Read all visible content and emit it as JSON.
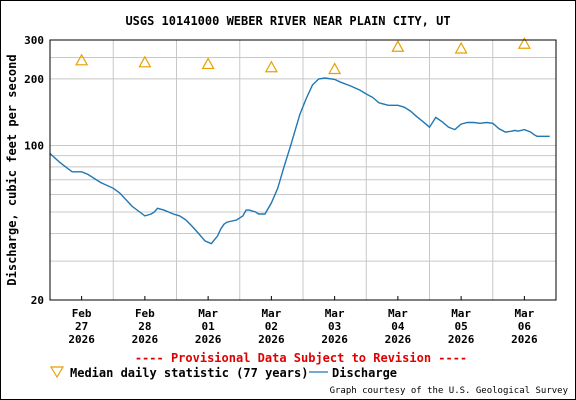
{
  "chart_data": {
    "type": "line",
    "title": "USGS 10141000 WEBER RIVER NEAR PLAIN CITY, UT",
    "ylabel": "Discharge, cubic feet per second",
    "yscale": "log",
    "ylim": [
      20,
      300
    ],
    "y_ticks": [
      {
        "value": 20,
        "label": "20"
      },
      {
        "value": 100,
        "label": "100"
      },
      {
        "value": 200,
        "label": "200"
      },
      {
        "value": 300,
        "label": "300"
      }
    ],
    "y_minor_gridlines": [
      30,
      40,
      50,
      60,
      70,
      80,
      90,
      250
    ],
    "x_ticks": [
      {
        "x": 0.5,
        "label": [
          "Feb",
          "27",
          "2026"
        ]
      },
      {
        "x": 1.5,
        "label": [
          "Feb",
          "28",
          "2026"
        ]
      },
      {
        "x": 2.5,
        "label": [
          "Mar",
          "01",
          "2026"
        ]
      },
      {
        "x": 3.5,
        "label": [
          "Mar",
          "02",
          "2026"
        ]
      },
      {
        "x": 4.5,
        "label": [
          "Mar",
          "03",
          "2026"
        ]
      },
      {
        "x": 5.5,
        "label": [
          "Mar",
          "04",
          "2026"
        ]
      },
      {
        "x": 6.5,
        "label": [
          "Mar",
          "05",
          "2026"
        ]
      },
      {
        "x": 7.5,
        "label": [
          "Mar",
          "06",
          "2026"
        ]
      }
    ],
    "day_boundaries": [
      1,
      2,
      3,
      4,
      5,
      6,
      7
    ],
    "xlim": [
      0,
      8
    ],
    "grid": true,
    "series": [
      {
        "name": "Median daily statistic (77 years)",
        "marker": "triangle",
        "color": "#e8a000",
        "x": [
          0.5,
          1.5,
          2.5,
          3.5,
          4.5,
          5.5,
          6.5,
          7.5
        ],
        "y": [
          244,
          239,
          235,
          227,
          223,
          281,
          276,
          290
        ]
      },
      {
        "name": "Discharge",
        "marker": "line",
        "color": "#1f77b4",
        "x": [
          0.0,
          0.15,
          0.35,
          0.5,
          0.6,
          0.8,
          1.0,
          1.1,
          1.3,
          1.5,
          1.6,
          1.65,
          1.7,
          1.8,
          1.95,
          2.05,
          2.15,
          2.25,
          2.35,
          2.45,
          2.55,
          2.65,
          2.7,
          2.75,
          2.8,
          2.95,
          3.05,
          3.1,
          3.15,
          3.25,
          3.3,
          3.4,
          3.5,
          3.6,
          3.7,
          3.8,
          3.95,
          4.05,
          4.15,
          4.25,
          4.35,
          4.5,
          4.6,
          4.75,
          4.9,
          5.0,
          5.1,
          5.2,
          5.35,
          5.5,
          5.6,
          5.7,
          5.8,
          5.9,
          6.0,
          6.1,
          6.2,
          6.3,
          6.4,
          6.5,
          6.6,
          6.7,
          6.8,
          6.9,
          7.0,
          7.1,
          7.2,
          7.3,
          7.35,
          7.4,
          7.5,
          7.6,
          7.65,
          7.7,
          7.8,
          7.9
        ],
        "y": [
          92,
          84,
          76,
          76,
          74,
          68,
          64,
          61,
          53,
          48,
          49,
          50,
          52,
          51,
          49,
          48,
          46,
          43,
          40,
          37,
          36,
          39,
          42,
          44,
          45,
          46,
          48,
          51,
          51,
          50,
          49,
          49,
          55,
          64,
          80,
          99,
          138,
          163,
          188,
          200,
          202,
          199,
          193,
          186,
          178,
          171,
          165,
          156,
          152,
          152,
          149,
          143,
          135,
          128,
          121,
          134,
          128,
          121,
          118,
          125,
          127,
          127,
          126,
          127,
          126,
          119,
          115,
          116,
          117,
          116,
          118,
          115,
          112,
          110,
          110,
          110
        ]
      }
    ]
  },
  "notice": "---- Provisional Data Subject to Revision ----",
  "credit": "Graph courtesy of the U.S. Geological Survey"
}
